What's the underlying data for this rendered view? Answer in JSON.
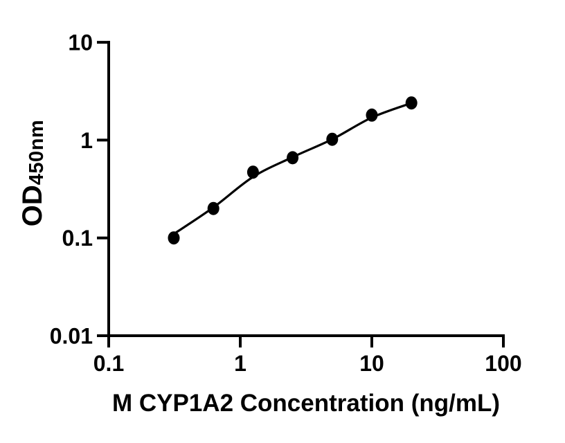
{
  "chart_data": {
    "type": "scatter",
    "title": "",
    "xlabel": "M CYP1A2 Concentration (ng/mL)",
    "ylabel_main": "OD",
    "ylabel_sub": "450nm",
    "x_scale": "log",
    "y_scale": "log",
    "xlim": [
      0.1,
      100
    ],
    "ylim": [
      0.01,
      10
    ],
    "x_ticks": [
      0.1,
      1,
      10,
      100
    ],
    "x_tick_labels": [
      "0.1",
      "1",
      "10",
      "100"
    ],
    "y_ticks": [
      0.01,
      0.1,
      1,
      10
    ],
    "y_tick_labels": [
      "0.01",
      "0.1",
      "1",
      "10"
    ],
    "grid": false,
    "legend": false,
    "marker_color": "#000000",
    "line_color": "#000000",
    "points": [
      {
        "x": 0.3125,
        "y": 0.1
      },
      {
        "x": 0.625,
        "y": 0.2
      },
      {
        "x": 1.25,
        "y": 0.47
      },
      {
        "x": 2.5,
        "y": 0.66
      },
      {
        "x": 5,
        "y": 1.02
      },
      {
        "x": 10,
        "y": 1.8
      },
      {
        "x": 20,
        "y": 2.4
      }
    ],
    "fit_curve": [
      {
        "x": 0.32,
        "y": 0.112
      },
      {
        "x": 0.625,
        "y": 0.205
      },
      {
        "x": 1.25,
        "y": 0.42
      },
      {
        "x": 2.5,
        "y": 0.67
      },
      {
        "x": 5,
        "y": 1.02
      },
      {
        "x": 10,
        "y": 1.7
      },
      {
        "x": 20,
        "y": 2.39
      }
    ]
  }
}
